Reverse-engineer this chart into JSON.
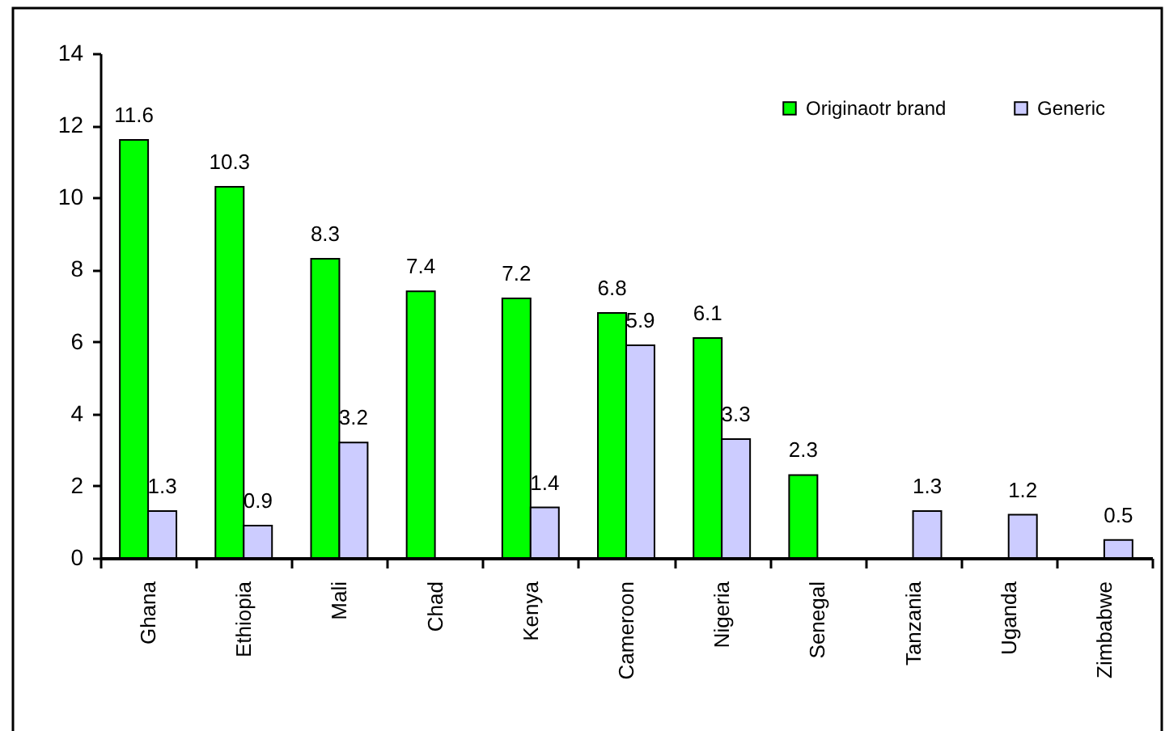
{
  "chart_data": {
    "type": "bar",
    "categories": [
      "Ghana",
      "Ethiopia",
      "Mali",
      "Chad",
      "Kenya",
      "Cameroon",
      "Nigeria",
      "Senegal",
      "Tanzania",
      "Uganda",
      "Zimbabwe"
    ],
    "series": [
      {
        "name": "Originaotr brand",
        "color": "#00ff00",
        "values": [
          11.6,
          10.3,
          8.3,
          7.4,
          7.2,
          6.8,
          6.1,
          2.3,
          null,
          null,
          null
        ]
      },
      {
        "name": "Generic",
        "color": "#ccccff",
        "values": [
          1.3,
          0.9,
          3.2,
          null,
          1.4,
          5.9,
          3.3,
          null,
          1.3,
          1.2,
          0.5
        ]
      }
    ],
    "ylim": [
      0,
      14
    ],
    "yticks": [
      0,
      2,
      4,
      6,
      8,
      10,
      12,
      14
    ],
    "data_labels": true,
    "legend": "top right"
  }
}
